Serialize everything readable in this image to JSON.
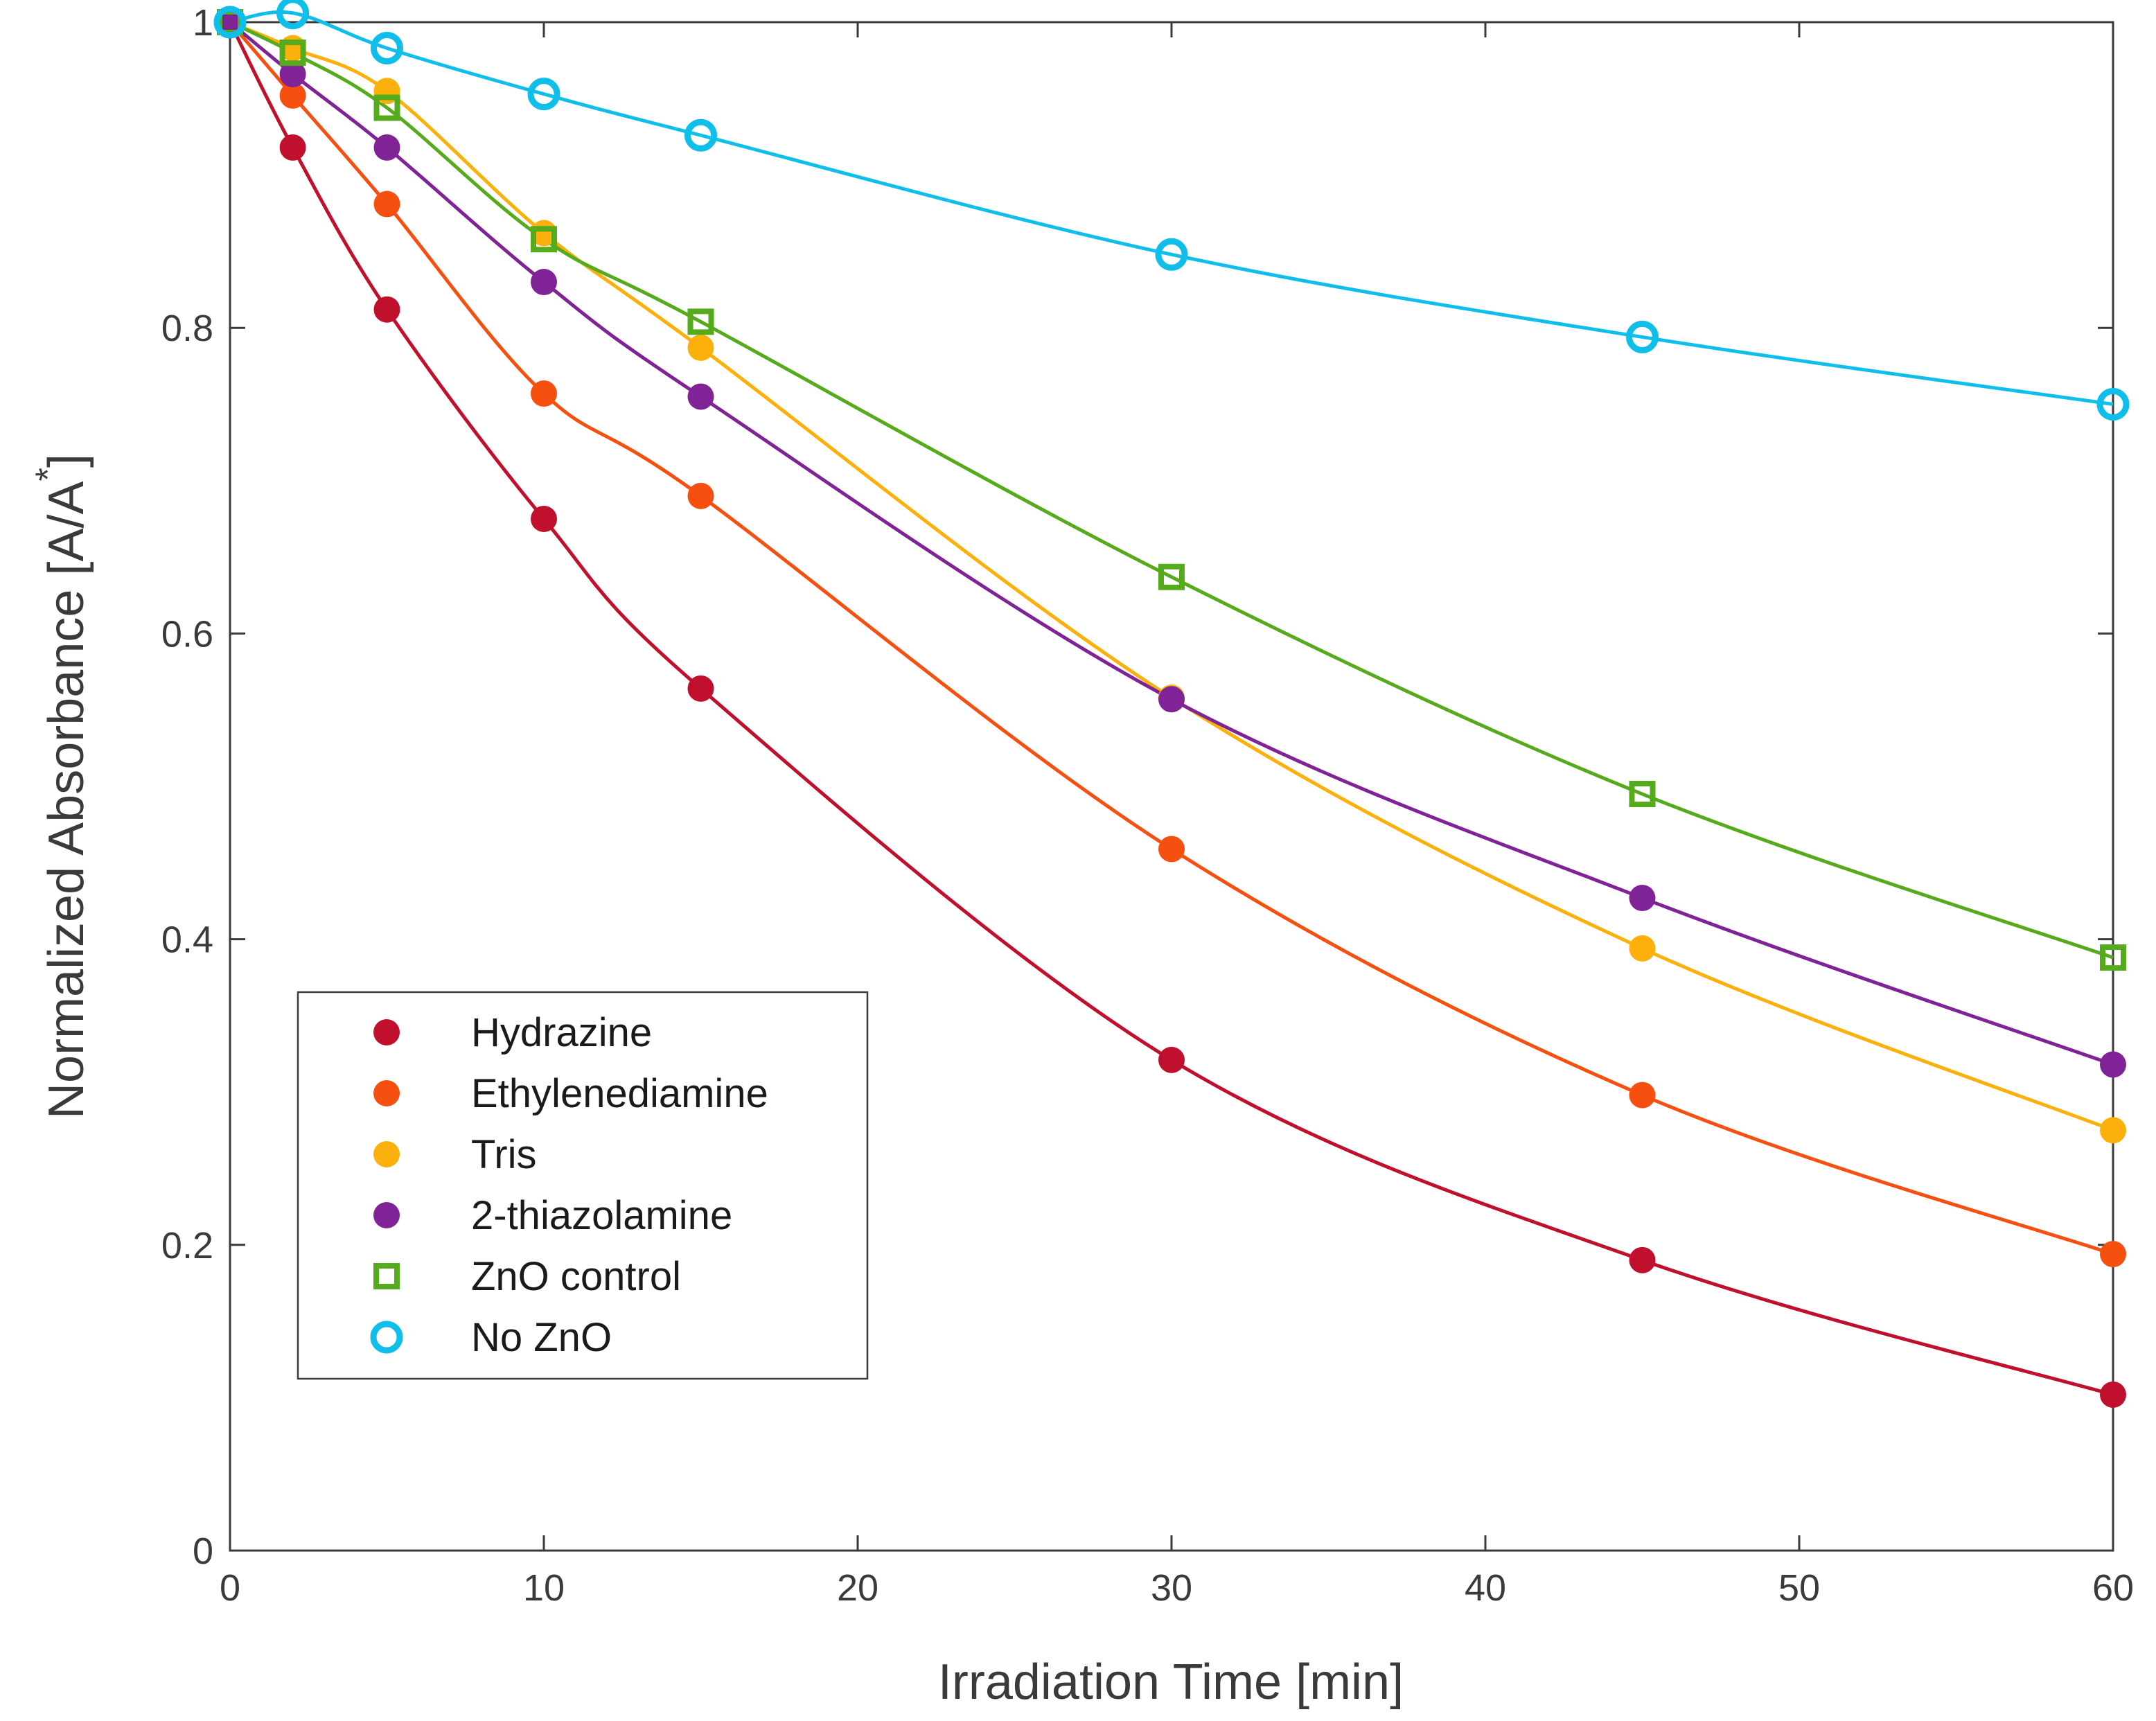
{
  "chart_data": {
    "type": "line",
    "title": "",
    "xlabel": "Irradiation Time [min]",
    "ylabel_main": "Normalized Absorbance [A/A",
    "ylabel_sup": "*",
    "ylabel_end": "]",
    "xlim": [
      0,
      60
    ],
    "ylim": [
      0,
      1.0
    ],
    "xticks": [
      0,
      10,
      20,
      30,
      40,
      50,
      60
    ],
    "xtick_labels": [
      "0",
      "10",
      "20",
      "30",
      "40",
      "50",
      "60"
    ],
    "yticks": [
      0,
      0.2,
      0.4,
      0.6,
      0.8,
      1.0
    ],
    "ytick_labels": [
      "0",
      "0.2",
      "0.4",
      "0.6",
      "0.8",
      "1"
    ],
    "grid": false,
    "legend_position": "lower-left",
    "series": [
      {
        "name": "Hydrazine",
        "color": "#c0102e",
        "marker": "filled-circle",
        "x": [
          0,
          2,
          5,
          10,
          15,
          30,
          45,
          60
        ],
        "y": [
          1.0,
          0.918,
          0.812,
          0.675,
          0.564,
          0.321,
          0.19,
          0.102
        ]
      },
      {
        "name": "Ethylenediamine",
        "color": "#f5500f",
        "marker": "filled-circle",
        "x": [
          0,
          2,
          5,
          10,
          15,
          30,
          45,
          60
        ],
        "y": [
          1.0,
          0.952,
          0.881,
          0.757,
          0.69,
          0.459,
          0.298,
          0.194
        ]
      },
      {
        "name": "Tris",
        "color": "#fbb00b",
        "marker": "filled-circle",
        "x": [
          0,
          2,
          5,
          10,
          15,
          30,
          45,
          60
        ],
        "y": [
          1.0,
          0.983,
          0.955,
          0.862,
          0.787,
          0.558,
          0.394,
          0.275
        ]
      },
      {
        "name": "2-thiazolamine",
        "color": "#7f2396",
        "marker": "filled-circle",
        "x": [
          0,
          2,
          5,
          10,
          15,
          30,
          45,
          60
        ],
        "y": [
          1.0,
          0.966,
          0.918,
          0.83,
          0.755,
          0.557,
          0.427,
          0.318
        ]
      },
      {
        "name": "ZnO control",
        "color": "#56ab1d",
        "marker": "open-square",
        "x": [
          0,
          2,
          5,
          10,
          15,
          30,
          45,
          60
        ],
        "y": [
          1.0,
          0.98,
          0.944,
          0.858,
          0.804,
          0.637,
          0.495,
          0.388
        ]
      },
      {
        "name": "No ZnO",
        "color": "#0fbfe9",
        "marker": "open-circle",
        "x": [
          0,
          2,
          5,
          10,
          15,
          30,
          45,
          60
        ],
        "y": [
          1.0,
          1.006,
          0.983,
          0.953,
          0.926,
          0.848,
          0.794,
          0.75
        ]
      }
    ]
  }
}
